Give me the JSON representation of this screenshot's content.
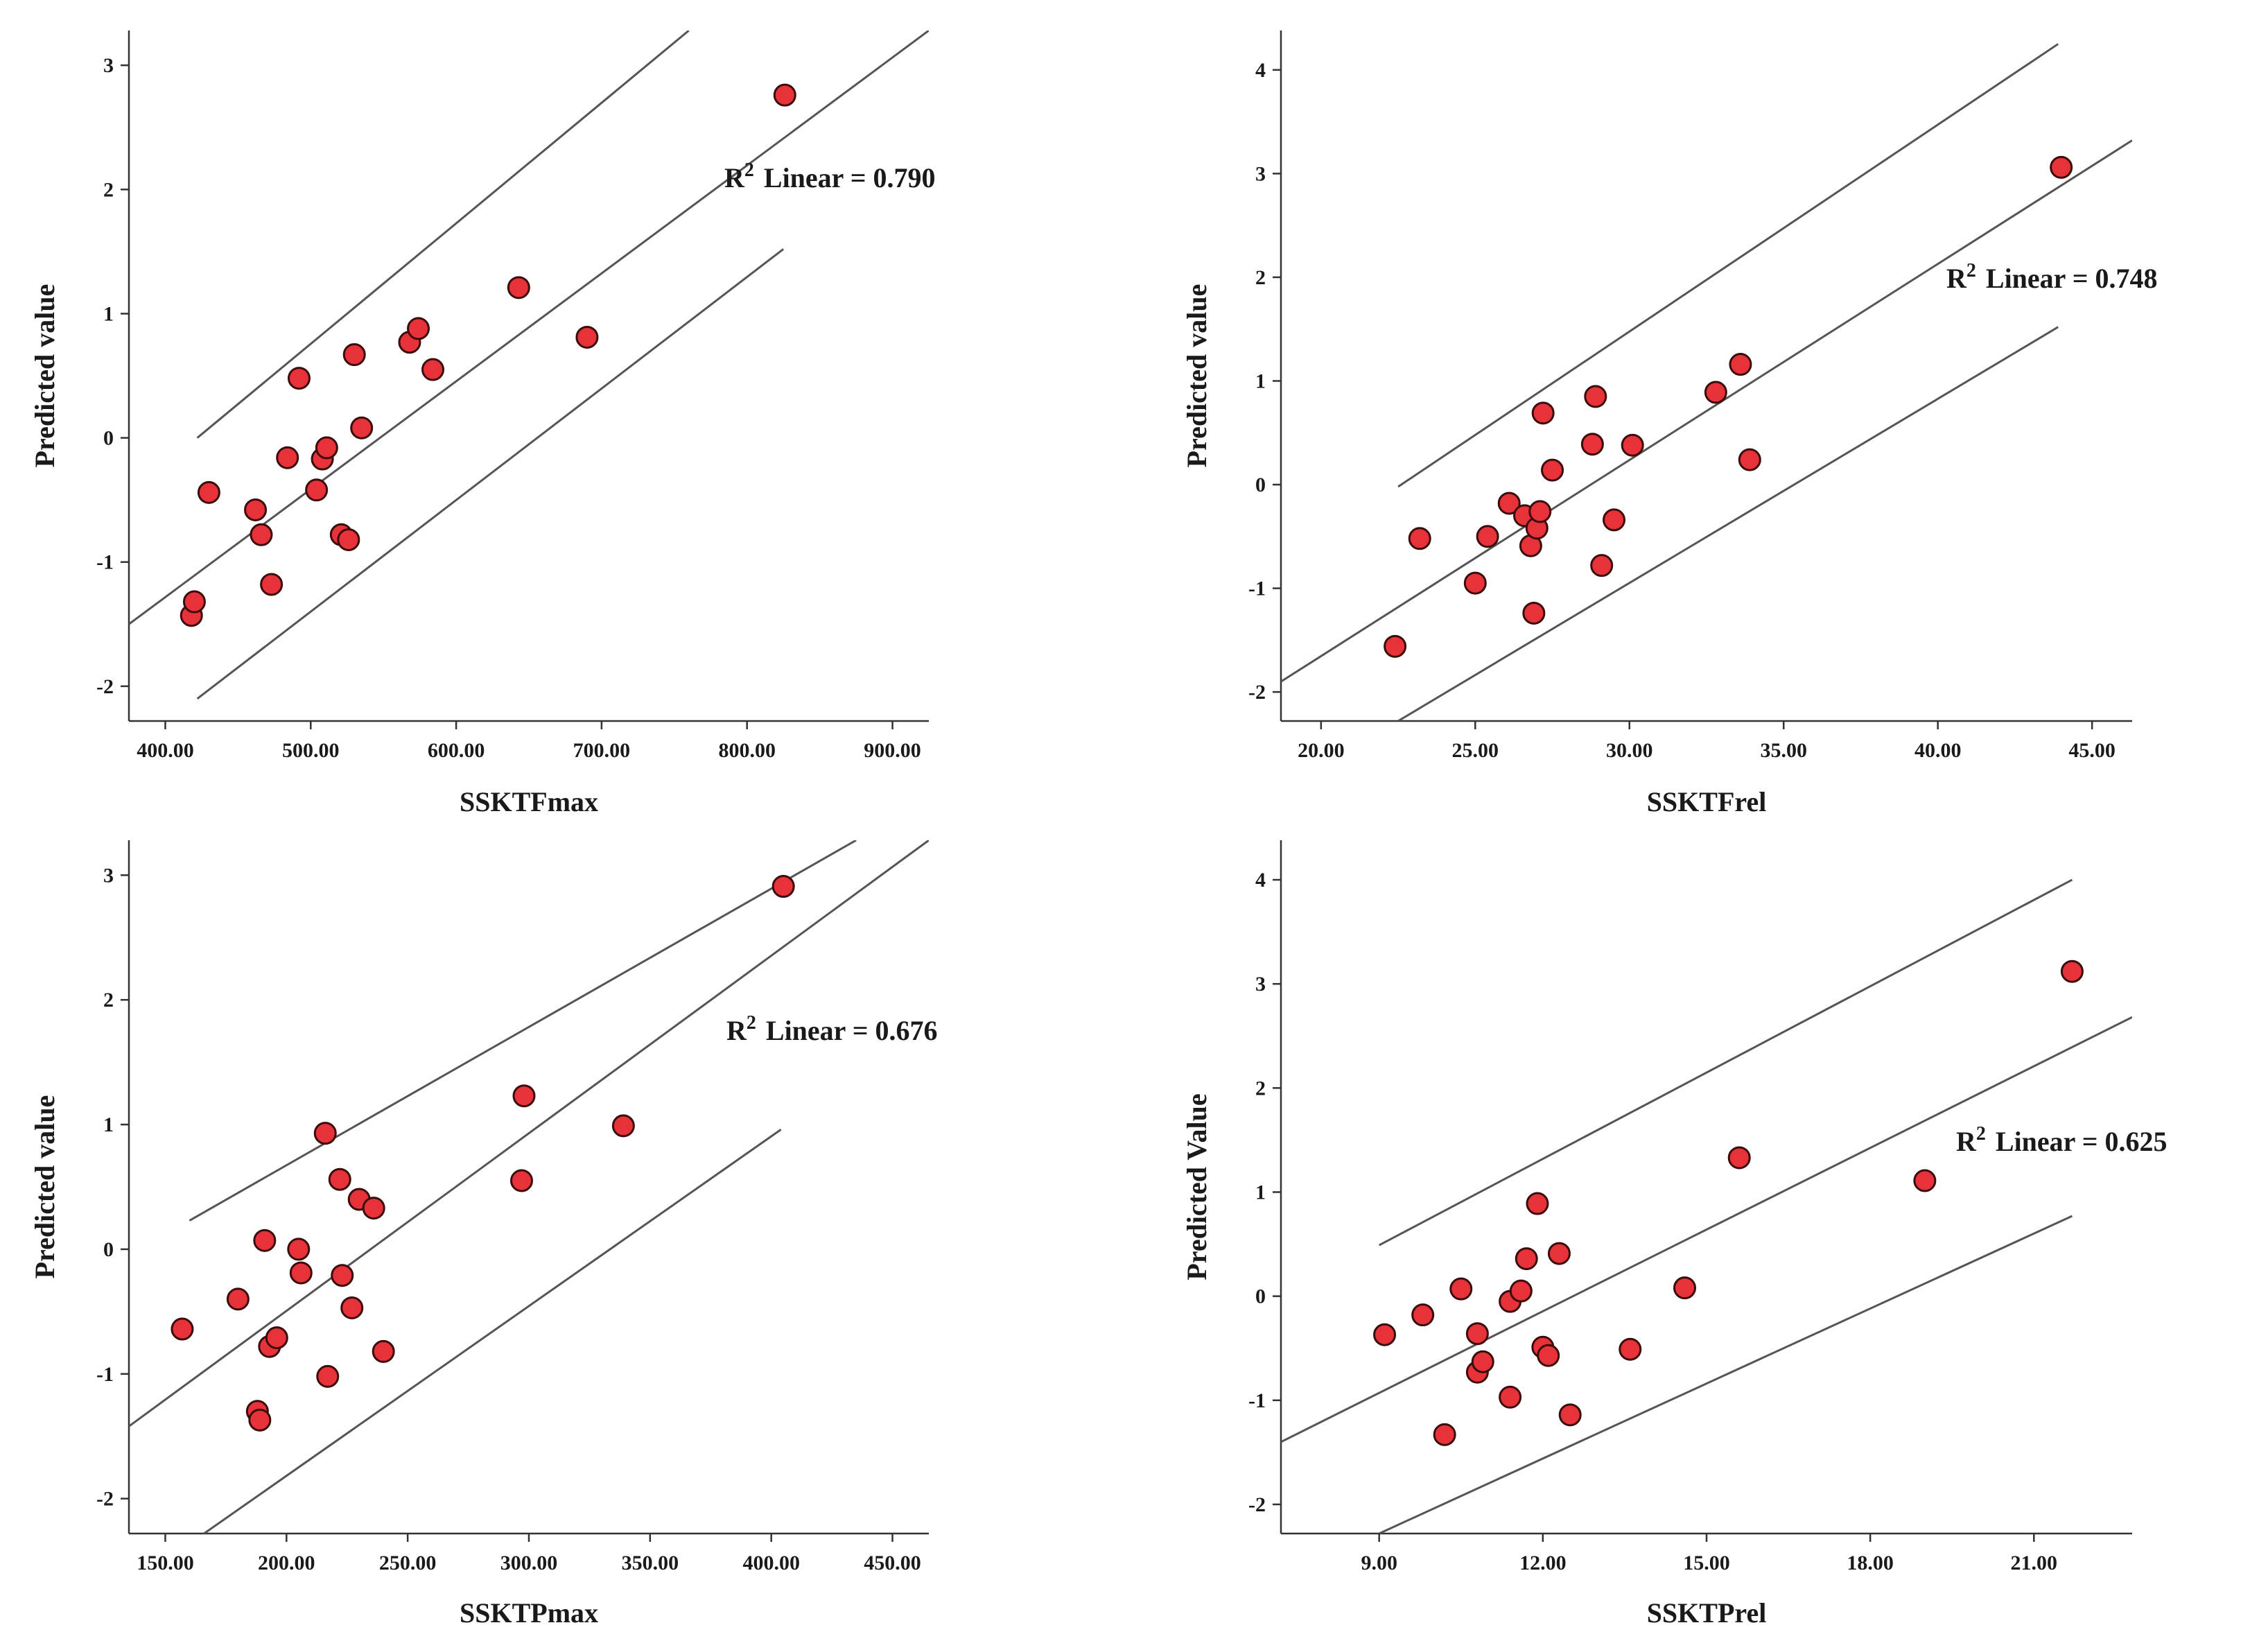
{
  "chart_data": [
    {
      "type": "scatter",
      "title": "",
      "xlabel": "SSKTFmax",
      "ylabel": "Predicted value",
      "xlim": [
        375,
        925
      ],
      "ylim": [
        -2.28,
        3.28
      ],
      "xticks": [
        "400.00",
        "500.00",
        "600.00",
        "700.00",
        "800.00",
        "900.00"
      ],
      "yticks": [
        "-2",
        "-1",
        "0",
        "1",
        "2",
        "3"
      ],
      "r2_label": "R",
      "r2_sup": "2",
      "r2_text": "Linear = 0.790",
      "fit_line": {
        "x": [
          375,
          925
        ],
        "y": [
          -1.5,
          3.28
        ]
      },
      "upper_band": {
        "x": [
          422,
          760
        ],
        "y": [
          0.0,
          3.28
        ]
      },
      "lower_band": {
        "x": [
          422,
          825
        ],
        "y": [
          -2.1,
          1.52
        ]
      },
      "points": [
        [
          418,
          -1.43
        ],
        [
          420,
          -1.32
        ],
        [
          430,
          -0.44
        ],
        [
          462,
          -0.58
        ],
        [
          466,
          -0.78
        ],
        [
          473,
          -1.18
        ],
        [
          484,
          -0.16
        ],
        [
          492,
          0.48
        ],
        [
          504,
          -0.42
        ],
        [
          508,
          -0.17
        ],
        [
          511,
          -0.08
        ],
        [
          521,
          -0.78
        ],
        [
          526,
          -0.82
        ],
        [
          530,
          0.67
        ],
        [
          535,
          0.08
        ],
        [
          568,
          0.77
        ],
        [
          574,
          0.88
        ],
        [
          584,
          0.55
        ],
        [
          643,
          1.21
        ],
        [
          690,
          0.81
        ],
        [
          826,
          2.76
        ]
      ]
    },
    {
      "type": "scatter",
      "title": "",
      "xlabel": "SSKTFrel",
      "ylabel": "Predicted value",
      "xlim": [
        18.7,
        46.3
      ],
      "ylim": [
        -2.28,
        4.38
      ],
      "xticks": [
        "20.00",
        "25.00",
        "30.00",
        "35.00",
        "40.00",
        "45.00"
      ],
      "yticks": [
        "-2",
        "-1",
        "0",
        "1",
        "2",
        "3",
        "4"
      ],
      "r2_label": "R",
      "r2_sup": "2",
      "r2_text": "Linear = 0.748",
      "fit_line": {
        "x": [
          18.7,
          46.3
        ],
        "y": [
          -1.9,
          3.32
        ]
      },
      "upper_band": {
        "x": [
          22.5,
          43.9
        ],
        "y": [
          -0.02,
          4.25
        ]
      },
      "lower_band": {
        "x": [
          22.5,
          43.9
        ],
        "y": [
          -2.28,
          1.52
        ]
      },
      "points": [
        [
          22.4,
          -1.56
        ],
        [
          23.2,
          -0.52
        ],
        [
          25.0,
          -0.95
        ],
        [
          25.4,
          -0.5
        ],
        [
          26.1,
          -0.18
        ],
        [
          26.6,
          -0.3
        ],
        [
          26.8,
          -0.59
        ],
        [
          26.9,
          -1.24
        ],
        [
          27.0,
          -0.42
        ],
        [
          27.1,
          -0.26
        ],
        [
          27.2,
          0.69
        ],
        [
          27.5,
          0.14
        ],
        [
          28.8,
          0.39
        ],
        [
          28.9,
          0.85
        ],
        [
          29.1,
          -0.78
        ],
        [
          29.5,
          -0.34
        ],
        [
          30.1,
          0.38
        ],
        [
          32.8,
          0.89
        ],
        [
          33.6,
          1.16
        ],
        [
          33.9,
          0.24
        ],
        [
          44.0,
          3.06
        ]
      ]
    },
    {
      "type": "scatter",
      "title": "",
      "xlabel": "SSKTPmax",
      "ylabel": "Predicted value",
      "xlim": [
        135,
        465
      ],
      "ylim": [
        -2.28,
        3.28
      ],
      "xticks": [
        "150.00",
        "200.00",
        "250.00",
        "300.00",
        "350.00",
        "400.00",
        "450.00"
      ],
      "yticks": [
        "-2",
        "-1",
        "0",
        "1",
        "2",
        "3"
      ],
      "r2_label": "R",
      "r2_sup": "2",
      "r2_text": "Linear = 0.676",
      "fit_line": {
        "x": [
          135,
          465
        ],
        "y": [
          -1.42,
          3.28
        ]
      },
      "upper_band": {
        "x": [
          160,
          435
        ],
        "y": [
          0.23,
          3.28
        ]
      },
      "lower_band": {
        "x": [
          166,
          404
        ],
        "y": [
          -2.28,
          0.96
        ]
      },
      "points": [
        [
          157,
          -0.64
        ],
        [
          180,
          -0.4
        ],
        [
          188,
          -1.3
        ],
        [
          189,
          -1.37
        ],
        [
          191,
          0.07
        ],
        [
          193,
          -0.78
        ],
        [
          196,
          -0.71
        ],
        [
          205,
          0.0
        ],
        [
          206,
          -0.19
        ],
        [
          216,
          0.93
        ],
        [
          217,
          -1.02
        ],
        [
          222,
          0.56
        ],
        [
          223,
          -0.21
        ],
        [
          227,
          -0.47
        ],
        [
          230,
          0.4
        ],
        [
          236,
          0.33
        ],
        [
          240,
          -0.82
        ],
        [
          297,
          0.55
        ],
        [
          298,
          1.23
        ],
        [
          339,
          0.99
        ],
        [
          405,
          2.91
        ]
      ]
    },
    {
      "type": "scatter",
      "title": "",
      "xlabel": "SSKTPrel",
      "ylabel": "Predicted Value",
      "xlim": [
        7.2,
        22.8
      ],
      "ylim": [
        -2.28,
        4.38
      ],
      "xticks": [
        "9.00",
        "12.00",
        "15.00",
        "18.00",
        "21.00"
      ],
      "yticks": [
        "-2",
        "-1",
        "0",
        "1",
        "2",
        "3",
        "4"
      ],
      "r2_label": "R",
      "r2_sup": "2",
      "r2_text": "Linear = 0.625",
      "fit_line": {
        "x": [
          7.2,
          22.8
        ],
        "y": [
          -1.4,
          2.68
        ]
      },
      "upper_band": {
        "x": [
          9.0,
          21.7
        ],
        "y": [
          0.49,
          4.0
        ]
      },
      "lower_band": {
        "x": [
          9.0,
          21.7
        ],
        "y": [
          -2.28,
          0.77
        ]
      },
      "points": [
        [
          9.1,
          -0.37
        ],
        [
          9.8,
          -0.18
        ],
        [
          10.2,
          -1.33
        ],
        [
          10.5,
          0.07
        ],
        [
          10.8,
          -0.73
        ],
        [
          10.8,
          -0.36
        ],
        [
          10.9,
          -0.63
        ],
        [
          11.4,
          -0.05
        ],
        [
          11.4,
          -0.97
        ],
        [
          11.6,
          0.05
        ],
        [
          11.7,
          0.36
        ],
        [
          11.9,
          0.89
        ],
        [
          12.0,
          -0.49
        ],
        [
          12.1,
          -0.57
        ],
        [
          12.3,
          0.41
        ],
        [
          12.5,
          -1.14
        ],
        [
          13.6,
          -0.51
        ],
        [
          14.6,
          0.08
        ],
        [
          15.6,
          1.33
        ],
        [
          19.0,
          1.11
        ],
        [
          21.7,
          3.12
        ]
      ]
    }
  ]
}
